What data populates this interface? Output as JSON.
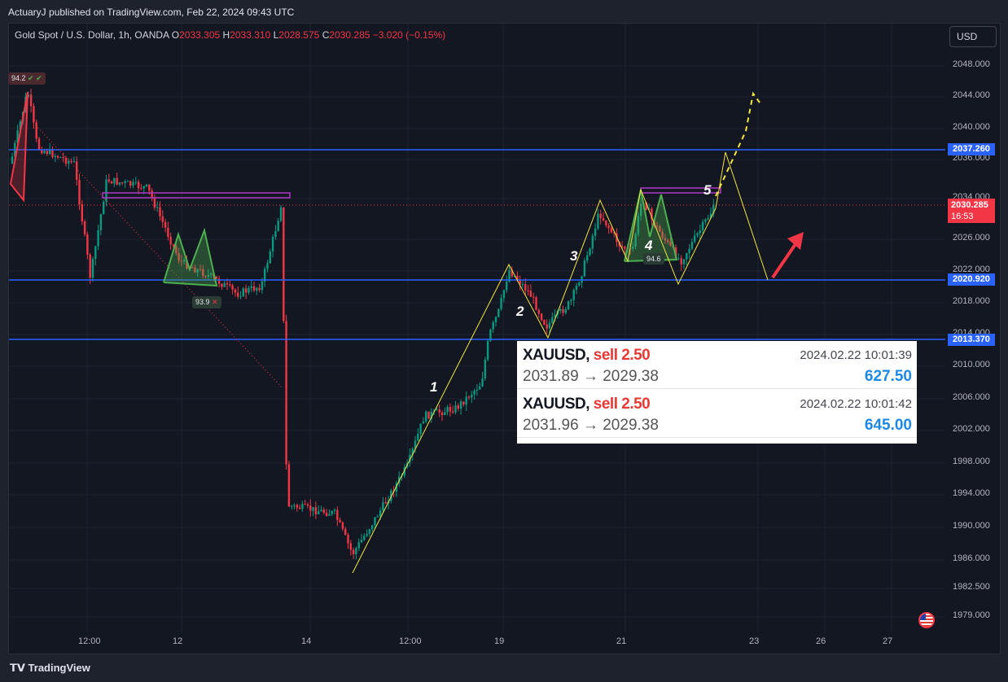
{
  "publish": {
    "text": "ActuaryJ published on TradingView.com, Feb 22, 2024 09:43 UTC"
  },
  "symbol": {
    "name": "Gold Spot / U.S. Dollar, 1h, OANDA",
    "o_label": "O",
    "o": "2033.305",
    "h_label": "H",
    "h": "2033.310",
    "l_label": "L",
    "l": "2028.575",
    "c_label": "C",
    "c": "2030.285",
    "change": "−3.020 (−0.15%)"
  },
  "currency": "USD",
  "price_axis": {
    "ticks": [
      "2048.000",
      "2044.000",
      "2040.000",
      "2036.000",
      "2034.000",
      "2026.000",
      "2022.000",
      "2018.000",
      "2014.000",
      "2010.000",
      "2006.000",
      "2002.000",
      "1998.000",
      "1994.000",
      "1990.000",
      "1986.000",
      "1982.500",
      "1979.000"
    ]
  },
  "time_axis": {
    "ticks": [
      "12:00",
      "12",
      "14",
      "12:00",
      "19",
      "21",
      "23",
      "26",
      "27"
    ]
  },
  "levels": [
    {
      "label": "2037.260",
      "color": "#2962ff"
    },
    {
      "label": "2020.920",
      "color": "#2962ff"
    },
    {
      "label": "2013.370",
      "color": "#2962ff"
    }
  ],
  "current_price": {
    "value": "2030.285",
    "countdown": "16:53",
    "color": "#f23645"
  },
  "waves": [
    "1",
    "2",
    "3",
    "4",
    "5"
  ],
  "pattern_badges": [
    "94.2",
    "93.9",
    "94.6"
  ],
  "trades": [
    {
      "symbol": "XAUUSD,",
      "side": "sell 2.50",
      "time": "2024.02.22 10:01:39",
      "prices": "2031.89 → 2029.38",
      "profit": "627.50"
    },
    {
      "symbol": "XAUUSD,",
      "side": "sell 2.50",
      "time": "2024.02.22 10:01:42",
      "prices": "2031.96 → 2029.38",
      "profit": "645.00"
    }
  ],
  "footer": {
    "brand": "TradingView"
  },
  "colors": {
    "up": "#089981",
    "down": "#f23645",
    "level": "#2962ff",
    "wave": "#f5e642",
    "pattern": "#4caf50",
    "box": "#b039c8"
  }
}
